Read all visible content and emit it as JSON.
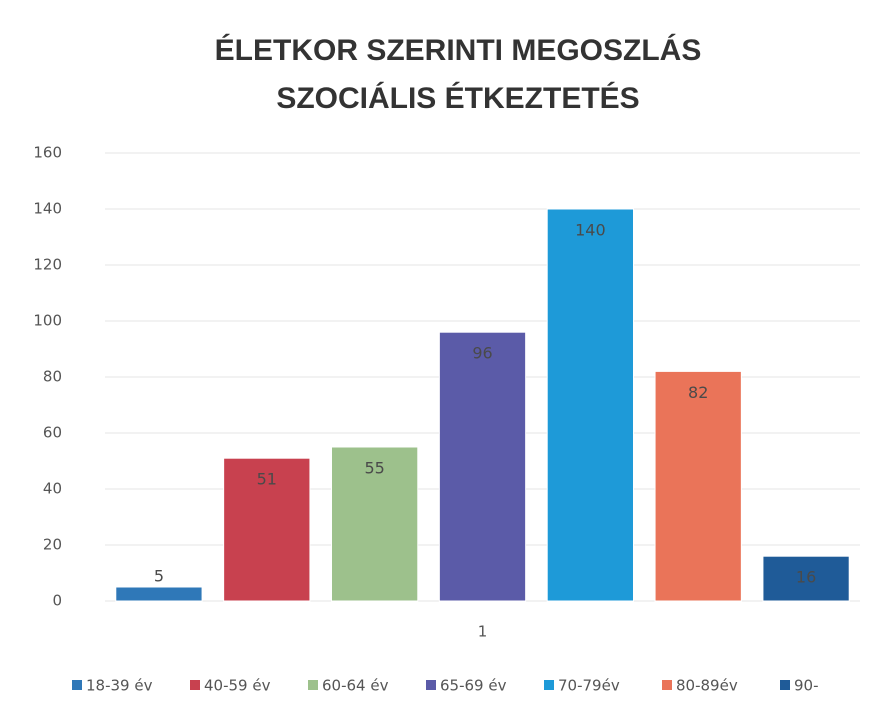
{
  "chart_data": {
    "type": "bar",
    "title": [
      "ÉLETKOR SZERINTI MEGOSZLÁS",
      "SZOCIÁLIS ÉTKEZTETÉS"
    ],
    "categories": [
      "1"
    ],
    "series": [
      {
        "name": "18-39 év",
        "color": "#2f78b8",
        "values": [
          5
        ]
      },
      {
        "name": "40-59 év",
        "color": "#c8414f",
        "values": [
          51
        ]
      },
      {
        "name": "60-64 év",
        "color": "#9dc18c",
        "values": [
          55
        ]
      },
      {
        "name": "65-69 év",
        "color": "#5b5ba8",
        "values": [
          96
        ]
      },
      {
        "name": "70-79év",
        "color": "#1e9ad8",
        "values": [
          140
        ]
      },
      {
        "name": "80-89év",
        "color": "#ea7459",
        "values": [
          82
        ]
      },
      {
        "name": "90-",
        "color": "#1f5b98",
        "values": [
          16
        ]
      }
    ],
    "ylim": [
      0,
      160
    ],
    "yticks": [
      0,
      20,
      40,
      60,
      80,
      100,
      120,
      140,
      160
    ],
    "grid": true,
    "legend": "bottom"
  }
}
